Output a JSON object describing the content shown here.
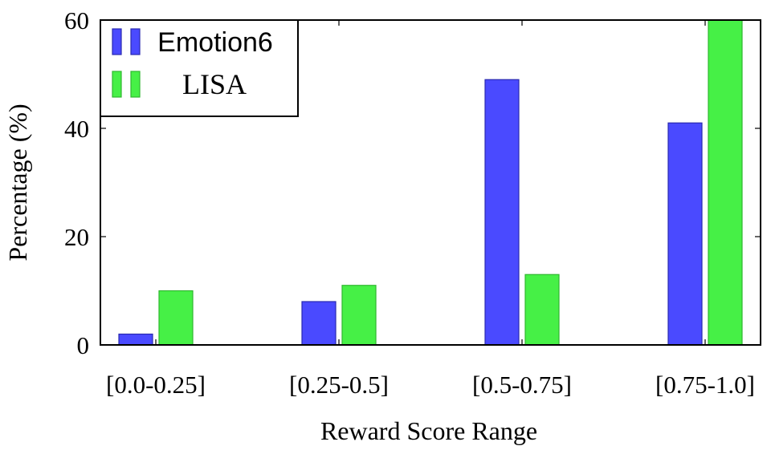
{
  "chart_data": {
    "type": "bar",
    "categories": [
      "[0.0-0.25]",
      "[0.25-0.5]",
      "[0.5-0.75]",
      "[0.75-1.0]"
    ],
    "series": [
      {
        "name": "Emotion6",
        "values": [
          2,
          8,
          49,
          41
        ],
        "color": "#4a4aff",
        "stroke": "#2a2ab0"
      },
      {
        "name": "LISA",
        "values": [
          10,
          11,
          13,
          60
        ],
        "color": "#46f046",
        "stroke": "#2eb82e"
      }
    ],
    "xlabel": "Reward Score Range",
    "ylabel": "Percentage (%)",
    "ylim": [
      0,
      60
    ],
    "yticks": [
      "0",
      "20",
      "40",
      "60"
    ],
    "grid": false,
    "legend_position": "top-left"
  }
}
